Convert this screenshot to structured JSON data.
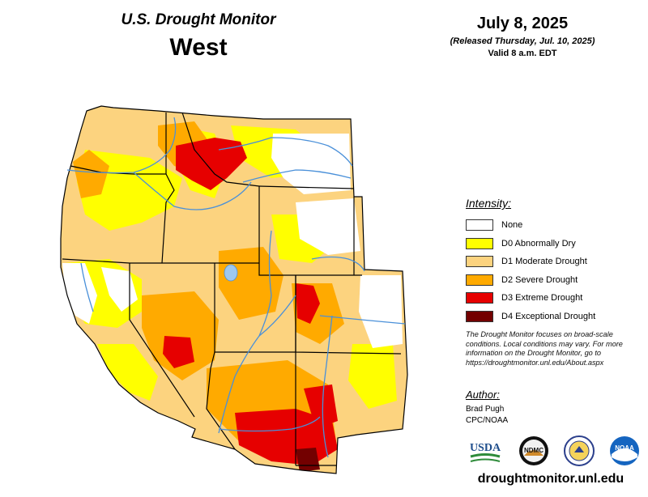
{
  "header": {
    "subtitle": "U.S. Drought Monitor",
    "region": "West"
  },
  "date_info": {
    "date": "July 8, 2025",
    "released": "(Released Thursday, Jul. 10, 2025)",
    "valid": "Valid 8 a.m. EDT"
  },
  "legend": {
    "title": "Intensity:",
    "items": [
      {
        "label": "None",
        "color": "#ffffff"
      },
      {
        "label": "D0 Abnormally Dry",
        "color": "#ffff00"
      },
      {
        "label": "D1 Moderate Drought",
        "color": "#fcd37f"
      },
      {
        "label": "D2 Severe Drought",
        "color": "#ffaa00"
      },
      {
        "label": "D3 Extreme Drought",
        "color": "#e60000"
      },
      {
        "label": "D4 Exceptional Drought",
        "color": "#730000"
      }
    ]
  },
  "note": "The Drought Monitor focuses on broad-scale conditions. Local conditions may vary. For more information on the Drought Monitor, go to https://droughtmonitor.unl.edu/About.aspx",
  "author": {
    "title": "Author:",
    "name": "Brad Pugh",
    "org": "CPC/NOAA"
  },
  "logos": {
    "usda": "USDA",
    "ndmc": "NDMC",
    "noaa": "NOAA"
  },
  "footer": {
    "url": "droughtmonitor.unl.edu"
  },
  "colors": {
    "river": "#4a90d9",
    "boundary": "#000000"
  }
}
